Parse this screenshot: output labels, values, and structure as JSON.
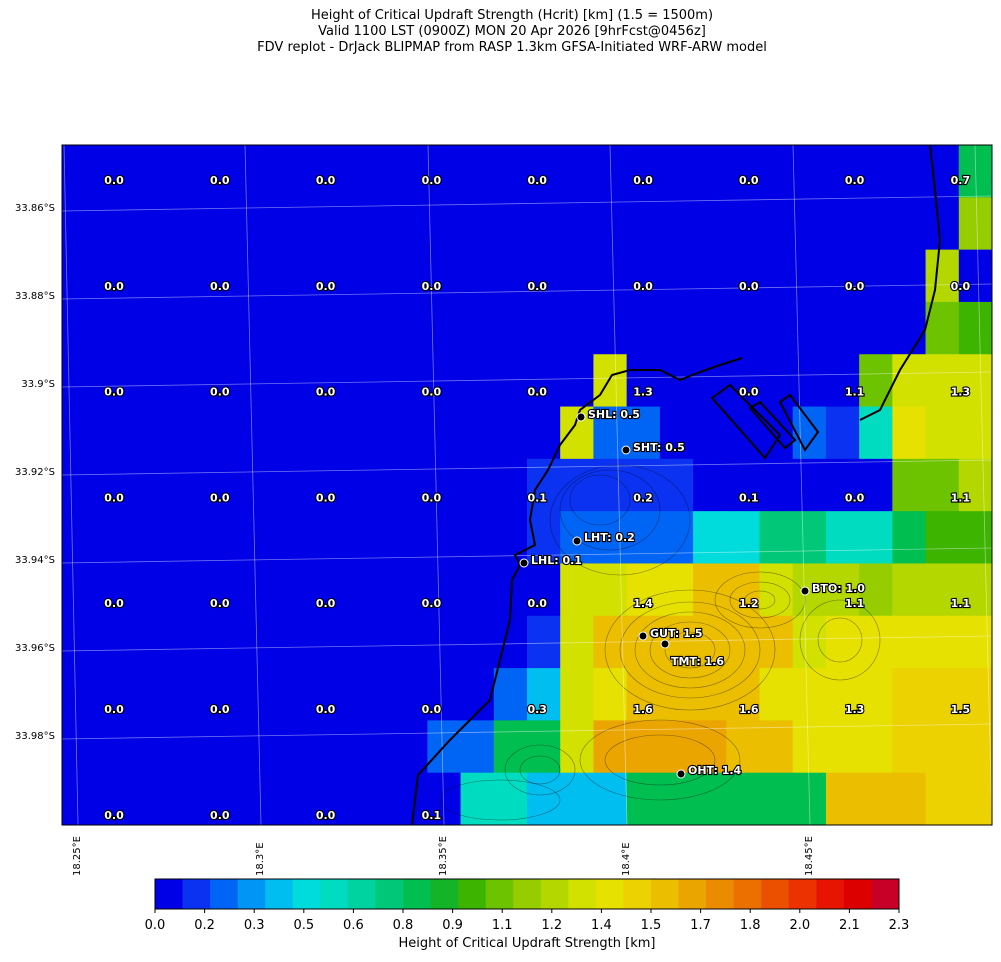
{
  "title": {
    "line1": "Height of Critical Updraft Strength (Hcrit) [km] (1.5 = 1500m)",
    "line2": "Valid 1100 LST (0900Z) MON 20 Apr 2026 [9hrFcst@0456z]",
    "line3": "FDV replot - DrJack BLIPMAP from RASP 1.3km GFSA-Initiated WRF-ARW model"
  },
  "axes": {
    "lat_labels": [
      "33.86°S",
      "33.88°S",
      "33.9°S",
      "33.92°S",
      "33.94°S",
      "33.96°S",
      "33.98°S"
    ],
    "lon_labels": [
      "18.25°E",
      "18.3°E",
      "18.35°E",
      "18.4°E",
      "18.45°E"
    ]
  },
  "colorbar": {
    "label": "Height of Critical Updraft Strength [km]",
    "ticks": [
      "0.0",
      "0.2",
      "0.3",
      "0.5",
      "0.6",
      "0.8",
      "0.9",
      "1.1",
      "1.2",
      "1.4",
      "1.5",
      "1.7",
      "1.8",
      "2.0",
      "2.1",
      "2.3"
    ],
    "colors": [
      "#0000e6",
      "#0a32f0",
      "#0064f5",
      "#0096f5",
      "#00bef0",
      "#00dcdc",
      "#00dcc0",
      "#00d2a0",
      "#00c878",
      "#00be50",
      "#14b428",
      "#3cb400",
      "#6ec300",
      "#96cd00",
      "#b4d700",
      "#d2e100",
      "#e6e100",
      "#ebd200",
      "#ebbe00",
      "#eba500",
      "#eb8c00",
      "#eb7000",
      "#eb5000",
      "#eb3200",
      "#e61400",
      "#dc0000",
      "#c80028"
    ]
  },
  "grid_values": [
    [
      "0.0",
      "0.0",
      "0.0",
      "0.0",
      "0.0",
      "0.0",
      "0.0",
      "0.0",
      "0.7"
    ],
    [
      "0.0",
      "0.0",
      "0.0",
      "0.0",
      "0.0",
      "0.0",
      "0.0",
      "0.0",
      "0.0"
    ],
    [
      "0.0",
      "0.0",
      "0.0",
      "0.0",
      "0.0",
      "1.3",
      "0.0",
      "1.1",
      "1.3"
    ],
    [
      "0.0",
      "0.0",
      "0.0",
      "0.0",
      "0.1",
      "0.2",
      "0.1",
      "0.0",
      "1.1"
    ],
    [
      "0.0",
      "0.0",
      "0.0",
      "0.0",
      "0.0",
      "1.4",
      "1.2",
      "1.1",
      "1.1"
    ],
    [
      "0.0",
      "0.0",
      "0.0",
      "0.0",
      "0.3",
      "1.6",
      "1.6",
      "1.3",
      "1.5"
    ],
    [
      "0.0",
      "0.0",
      "0.0",
      "0.1",
      "",
      "",
      "",
      "",
      ""
    ]
  ],
  "cell_colors": [
    [
      "#0000e6",
      "#0000e6",
      "#0000e6",
      "#0000e6",
      "#0000e6",
      "#0000e6",
      "#0000e6",
      "#0000e6",
      "#0000e6",
      "#0000e6",
      "#0000e6",
      "#0000e6",
      "#0000e6",
      "#0000e6",
      "#0000e6",
      "#0000e6",
      "#0000e6",
      "#0000e6",
      "#0000e6",
      "#0000e6",
      "#0000e6",
      "#0000e6",
      "#0000e6",
      "#0000e6",
      "#0000e6",
      "#0000e6",
      "#0000e6",
      "#00be50"
    ],
    [
      "#0000e6",
      "#0000e6",
      "#0000e6",
      "#0000e6",
      "#0000e6",
      "#0000e6",
      "#0000e6",
      "#0000e6",
      "#0000e6",
      "#0000e6",
      "#0000e6",
      "#0000e6",
      "#0000e6",
      "#0000e6",
      "#0000e6",
      "#0000e6",
      "#0000e6",
      "#0000e6",
      "#0000e6",
      "#0000e6",
      "#0000e6",
      "#0000e6",
      "#0000e6",
      "#0000e6",
      "#0000e6",
      "#0000e6",
      "#0000e6",
      "#96cd00"
    ],
    [
      "#0000e6",
      "#0000e6",
      "#0000e6",
      "#0000e6",
      "#0000e6",
      "#0000e6",
      "#0000e6",
      "#0000e6",
      "#0000e6",
      "#0000e6",
      "#0000e6",
      "#0000e6",
      "#0000e6",
      "#0000e6",
      "#0000e6",
      "#0000e6",
      "#0000e6",
      "#0000e6",
      "#0000e6",
      "#0000e6",
      "#0000e6",
      "#0000e6",
      "#0000e6",
      "#0000e6",
      "#0000e6",
      "#0000e6",
      "#b4d700",
      "#0000e6"
    ],
    [
      "#0000e6",
      "#0000e6",
      "#0000e6",
      "#0000e6",
      "#0000e6",
      "#0000e6",
      "#0000e6",
      "#0000e6",
      "#0000e6",
      "#0000e6",
      "#0000e6",
      "#0000e6",
      "#0000e6",
      "#0000e6",
      "#0000e6",
      "#0000e6",
      "#0000e6",
      "#0000e6",
      "#0000e6",
      "#0000e6",
      "#0000e6",
      "#0000e6",
      "#0000e6",
      "#0000e6",
      "#0000e6",
      "#0000e6",
      "#6ec300",
      "#3cb400"
    ],
    [
      "#0000e6",
      "#0000e6",
      "#0000e6",
      "#0000e6",
      "#0000e6",
      "#0000e6",
      "#0000e6",
      "#0000e6",
      "#0000e6",
      "#0000e6",
      "#0000e6",
      "#0000e6",
      "#0000e6",
      "#0000e6",
      "#0000e6",
      "#0000e6",
      "#d2e100",
      "#0000e6",
      "#0000e6",
      "#0000e6",
      "#0000e6",
      "#0000e6",
      "#0000e6",
      "#0000e6",
      "#6ec300",
      "#d2e100",
      "#d2e100",
      "#d2e100"
    ],
    [
      "#0000e6",
      "#0000e6",
      "#0000e6",
      "#0000e6",
      "#0000e6",
      "#0000e6",
      "#0000e6",
      "#0000e6",
      "#0000e6",
      "#0000e6",
      "#0000e6",
      "#0000e6",
      "#0000e6",
      "#0000e6",
      "#0000e6",
      "#d2e100",
      "#0064f5",
      "#0064f5",
      "#0000e6",
      "#0000e6",
      "#0000e6",
      "#0000e6",
      "#0064f5",
      "#0a32f0",
      "#00dcc0",
      "#e6e100",
      "#d2e100",
      "#d2e100"
    ],
    [
      "#0000e6",
      "#0000e6",
      "#0000e6",
      "#0000e6",
      "#0000e6",
      "#0000e6",
      "#0000e6",
      "#0000e6",
      "#0000e6",
      "#0000e6",
      "#0000e6",
      "#0000e6",
      "#0000e6",
      "#0000e6",
      "#0a32f0",
      "#0a32f0",
      "#0a32f0",
      "#0a32f0",
      "#0a32f0",
      "#0000e6",
      "#0000e6",
      "#0000e6",
      "#0000e6",
      "#0000e6",
      "#0000e6",
      "#6ec300",
      "#6ec300",
      "#b4d700"
    ],
    [
      "#0000e6",
      "#0000e6",
      "#0000e6",
      "#0000e6",
      "#0000e6",
      "#0000e6",
      "#0000e6",
      "#0000e6",
      "#0000e6",
      "#0000e6",
      "#0000e6",
      "#0000e6",
      "#0000e6",
      "#0000e6",
      "#0a32f0",
      "#0064f5",
      "#0064f5",
      "#0064f5",
      "#0064f5",
      "#00dcdc",
      "#00dcdc",
      "#00c878",
      "#00c878",
      "#00dcc0",
      "#00dcc0",
      "#00be50",
      "#3cb400",
      "#3cb400"
    ],
    [
      "#0000e6",
      "#0000e6",
      "#0000e6",
      "#0000e6",
      "#0000e6",
      "#0000e6",
      "#0000e6",
      "#0000e6",
      "#0000e6",
      "#0000e6",
      "#0000e6",
      "#0000e6",
      "#0000e6",
      "#0000e6",
      "#0000e6",
      "#d2e100",
      "#d2e100",
      "#e6e100",
      "#e6e100",
      "#ebbe00",
      "#ebbe00",
      "#d2e100",
      "#b4d700",
      "#b4d700",
      "#96cd00",
      "#b4d700",
      "#b4d700",
      "#b4d700"
    ],
    [
      "#0000e6",
      "#0000e6",
      "#0000e6",
      "#0000e6",
      "#0000e6",
      "#0000e6",
      "#0000e6",
      "#0000e6",
      "#0000e6",
      "#0000e6",
      "#0000e6",
      "#0000e6",
      "#0000e6",
      "#0000e6",
      "#0a32f0",
      "#d2e100",
      "#ebbe00",
      "#ebbe00",
      "#ebbe00",
      "#ebbe00",
      "#ebbe00",
      "#ebbe00",
      "#d2e100",
      "#e6e100",
      "#e6e100",
      "#e6e100",
      "#e6e100",
      "#e6e100"
    ],
    [
      "#0000e6",
      "#0000e6",
      "#0000e6",
      "#0000e6",
      "#0000e6",
      "#0000e6",
      "#0000e6",
      "#0000e6",
      "#0000e6",
      "#0000e6",
      "#0000e6",
      "#0000e6",
      "#0000e6",
      "#0064f5",
      "#00bef0",
      "#d2e100",
      "#e6e100",
      "#ebbe00",
      "#ebbe00",
      "#ebbe00",
      "#ebbe00",
      "#e6e100",
      "#e6e100",
      "#e6e100",
      "#e6e100",
      "#ebd200",
      "#ebd200",
      "#ebd200"
    ],
    [
      "#0000e6",
      "#0000e6",
      "#0000e6",
      "#0000e6",
      "#0000e6",
      "#0000e6",
      "#0000e6",
      "#0000e6",
      "#0000e6",
      "#0000e6",
      "#0000e6",
      "#0064f5",
      "#0064f5",
      "#00be50",
      "#00be50",
      "#d2e100",
      "#eba500",
      "#eba500",
      "#eba500",
      "#eba500",
      "#ebbe00",
      "#ebbe00",
      "#e6e100",
      "#e6e100",
      "#e6e100",
      "#ebd200",
      "#ebd200",
      "#ebd200"
    ],
    [
      "#0000e6",
      "#0000e6",
      "#0000e6",
      "#0000e6",
      "#0000e6",
      "#0000e6",
      "#0000e6",
      "#0000e6",
      "#0000e6",
      "#0000e6",
      "#0000e6",
      "#0000e6",
      "#00dcc0",
      "#00dcc0",
      "#00bef0",
      "#00bef0",
      "#00bef0",
      "#00be50",
      "#00be50",
      "#00be50",
      "#00be50",
      "#00be50",
      "#00be50",
      "#ebbe00",
      "#ebbe00",
      "#ebbe00",
      "#ebd200",
      "#ebd200"
    ]
  ],
  "sites": [
    {
      "label": "SHL: 0.5"
    },
    {
      "label": "SHT: 0.5"
    },
    {
      "label": "LHT: 0.2"
    },
    {
      "label": "LHL: 0.1"
    },
    {
      "label": "BTO: 1.0"
    },
    {
      "label": "GUT: 1.5"
    },
    {
      "label": "TMT: 1.6"
    },
    {
      "label": "OHT: 1.4"
    }
  ]
}
